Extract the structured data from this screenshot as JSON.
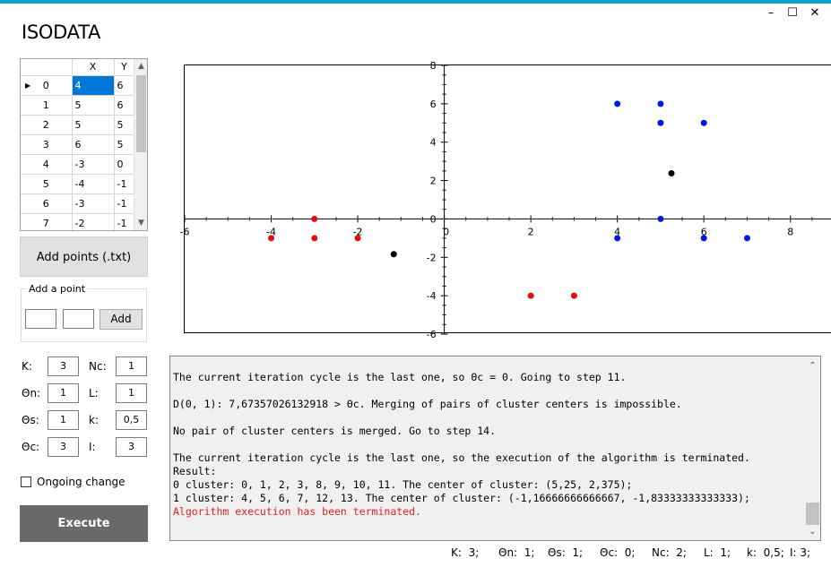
{
  "window": {
    "title": "ISODATA",
    "minimize_glyph": "–",
    "maximize_glyph": "☐",
    "close_glyph": "✕",
    "accent_color": "#14a0cc"
  },
  "grid": {
    "headers": [
      "X",
      "Y"
    ],
    "rows": [
      {
        "index": "0",
        "x": "4",
        "y": "6"
      },
      {
        "index": "1",
        "x": "5",
        "y": "6"
      },
      {
        "index": "2",
        "x": "5",
        "y": "5"
      },
      {
        "index": "3",
        "x": "6",
        "y": "5"
      },
      {
        "index": "4",
        "x": "-3",
        "y": "0"
      },
      {
        "index": "5",
        "x": "-4",
        "y": "-1"
      },
      {
        "index": "6",
        "x": "-3",
        "y": "-1"
      },
      {
        "index": "7",
        "x": "-2",
        "y": "-1"
      }
    ],
    "current_row_icon": "row-pointer-icon"
  },
  "buttons": {
    "add_points": "Add points (.txt)",
    "add": "Add",
    "execute": "Execute"
  },
  "add_point": {
    "title": "Add a point",
    "x_value": "",
    "y_value": ""
  },
  "params": {
    "K": {
      "label": "K:",
      "value": "3"
    },
    "Nc": {
      "label": "Nc:",
      "value": "1"
    },
    "On": {
      "label": "Θn:",
      "value": "1"
    },
    "L": {
      "label": "L:",
      "value": "1"
    },
    "Os": {
      "label": "Θs:",
      "value": "1"
    },
    "k": {
      "label": "k:",
      "value": "0,5"
    },
    "Oc": {
      "label": "Θc:",
      "value": "3"
    },
    "I": {
      "label": "I:",
      "value": "3"
    }
  },
  "ongoing_change": {
    "label": "Ongoing change",
    "checked": false
  },
  "chart_data": {
    "type": "scatter",
    "xlim": [
      -6,
      9
    ],
    "ylim": [
      -6,
      8
    ],
    "x_ticks": [
      -6,
      -4,
      -2,
      0,
      2,
      4,
      6,
      8
    ],
    "x_tick_labels": [
      "-6",
      "-4",
      "-2",
      "0",
      "2",
      "4",
      "6",
      "8"
    ],
    "y_ticks": [
      -6,
      -4,
      -2,
      0,
      2,
      4,
      6,
      8
    ],
    "y_tick_labels": [
      "-6",
      "-4",
      "-2",
      "0",
      "2",
      "4",
      "6",
      "8"
    ],
    "grid": false,
    "series": [
      {
        "color": "#e01010",
        "points": [
          [
            -3,
            0
          ],
          [
            -4,
            -1
          ],
          [
            -3,
            -1
          ],
          [
            -2,
            -1
          ],
          [
            2,
            -4
          ],
          [
            3,
            -4
          ]
        ]
      },
      {
        "color": "#0018e0",
        "points": [
          [
            4,
            6
          ],
          [
            5,
            6
          ],
          [
            5,
            5
          ],
          [
            6,
            5
          ],
          [
            5,
            0
          ],
          [
            4,
            -1
          ],
          [
            6,
            -1
          ],
          [
            7,
            -1
          ]
        ]
      },
      {
        "color": "#000000",
        "points": [
          [
            5.25,
            2.375
          ],
          [
            -1.1667,
            -1.8333
          ]
        ]
      }
    ]
  },
  "log": {
    "lines": [
      {
        "text": "The current iteration cycle is the last one, so Θc = 0. Going to step 11.",
        "color": "normal"
      },
      {
        "text": "",
        "color": "normal"
      },
      {
        "text": "D(0, 1): 7,67357026132918 > Θc. Merging of pairs of cluster centers is impossible.",
        "color": "normal"
      },
      {
        "text": "",
        "color": "normal"
      },
      {
        "text": "No pair of cluster centers is merged. Go to step 14.",
        "color": "normal"
      },
      {
        "text": "",
        "color": "normal"
      },
      {
        "text": "The current iteration cycle is the last one, so the execution of the algorithm is terminated.",
        "color": "normal"
      },
      {
        "text": "Result:",
        "color": "normal"
      },
      {
        "text": "0 cluster: 0, 1, 2, 3, 8, 9, 10, 11. The center of cluster: (5,25, 2,375);",
        "color": "normal"
      },
      {
        "text": "1 cluster: 4, 5, 6, 7, 12, 13. The center of cluster: (-1,16666666666667, -1,83333333333333);",
        "color": "normal"
      },
      {
        "text": "Algorithm execution has been terminated.",
        "color": "red"
      }
    ],
    "error_color": "#e0201e"
  },
  "status": {
    "items": [
      {
        "label": "K:",
        "value": "3;"
      },
      {
        "label": "Θn:",
        "value": "1;"
      },
      {
        "label": "Θs:",
        "value": "1;"
      },
      {
        "label": "Θc:",
        "value": "0;"
      },
      {
        "label": "Nc:",
        "value": "2;"
      },
      {
        "label": "L:",
        "value": "1;"
      },
      {
        "label": "k:",
        "value": "0,5;"
      },
      {
        "label": "I:",
        "value": "3;"
      }
    ]
  }
}
